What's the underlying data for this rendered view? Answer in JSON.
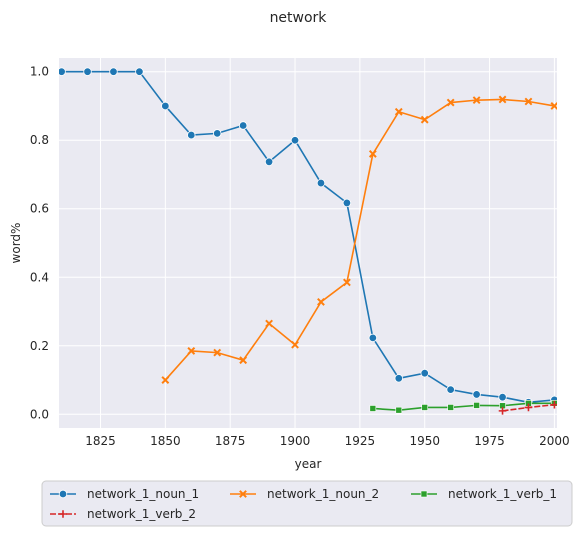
{
  "chart_data": {
    "type": "line",
    "title": "network",
    "xlabel": "year",
    "ylabel": "word%",
    "xlim": [
      1809,
      2001
    ],
    "ylim": [
      -0.04,
      1.04
    ],
    "xticks": [
      1825,
      1850,
      1875,
      1900,
      1925,
      1950,
      1975,
      2000
    ],
    "yticks": [
      0.0,
      0.2,
      0.4,
      0.6,
      0.8,
      1.0
    ],
    "grid": true,
    "legend_position": "bottom",
    "series": [
      {
        "name": "network_1_noun_1",
        "color": "#1f77b4",
        "marker": "circle",
        "x": [
          1810,
          1820,
          1830,
          1840,
          1850,
          1860,
          1870,
          1880,
          1890,
          1900,
          1910,
          1920,
          1930,
          1940,
          1950,
          1960,
          1970,
          1980,
          1990,
          2000
        ],
        "y": [
          1.0,
          1.0,
          1.0,
          1.0,
          0.9,
          0.815,
          0.82,
          0.843,
          0.737,
          0.8,
          0.675,
          0.617,
          0.223,
          0.105,
          0.12,
          0.072,
          0.058,
          0.05,
          0.035,
          0.042
        ]
      },
      {
        "name": "network_1_noun_2",
        "color": "#ff7f0e",
        "marker": "x",
        "x": [
          1850,
          1860,
          1870,
          1880,
          1890,
          1900,
          1910,
          1920,
          1930,
          1940,
          1950,
          1960,
          1970,
          1980,
          1990,
          2000
        ],
        "y": [
          0.1,
          0.185,
          0.18,
          0.158,
          0.265,
          0.203,
          0.328,
          0.385,
          0.76,
          0.883,
          0.86,
          0.91,
          0.917,
          0.919,
          0.913,
          0.9
        ]
      },
      {
        "name": "network_1_verb_1",
        "color": "#2ca02c",
        "marker": "square",
        "x": [
          1930,
          1940,
          1950,
          1960,
          1970,
          1980,
          1990,
          2000
        ],
        "y": [
          0.017,
          0.012,
          0.02,
          0.02,
          0.026,
          0.025,
          0.032,
          0.032
        ]
      },
      {
        "name": "network_1_verb_2",
        "color": "#d62728",
        "marker": "plus",
        "x": [
          1980,
          1990,
          2000
        ],
        "y": [
          0.01,
          0.02,
          0.028
        ]
      }
    ]
  }
}
